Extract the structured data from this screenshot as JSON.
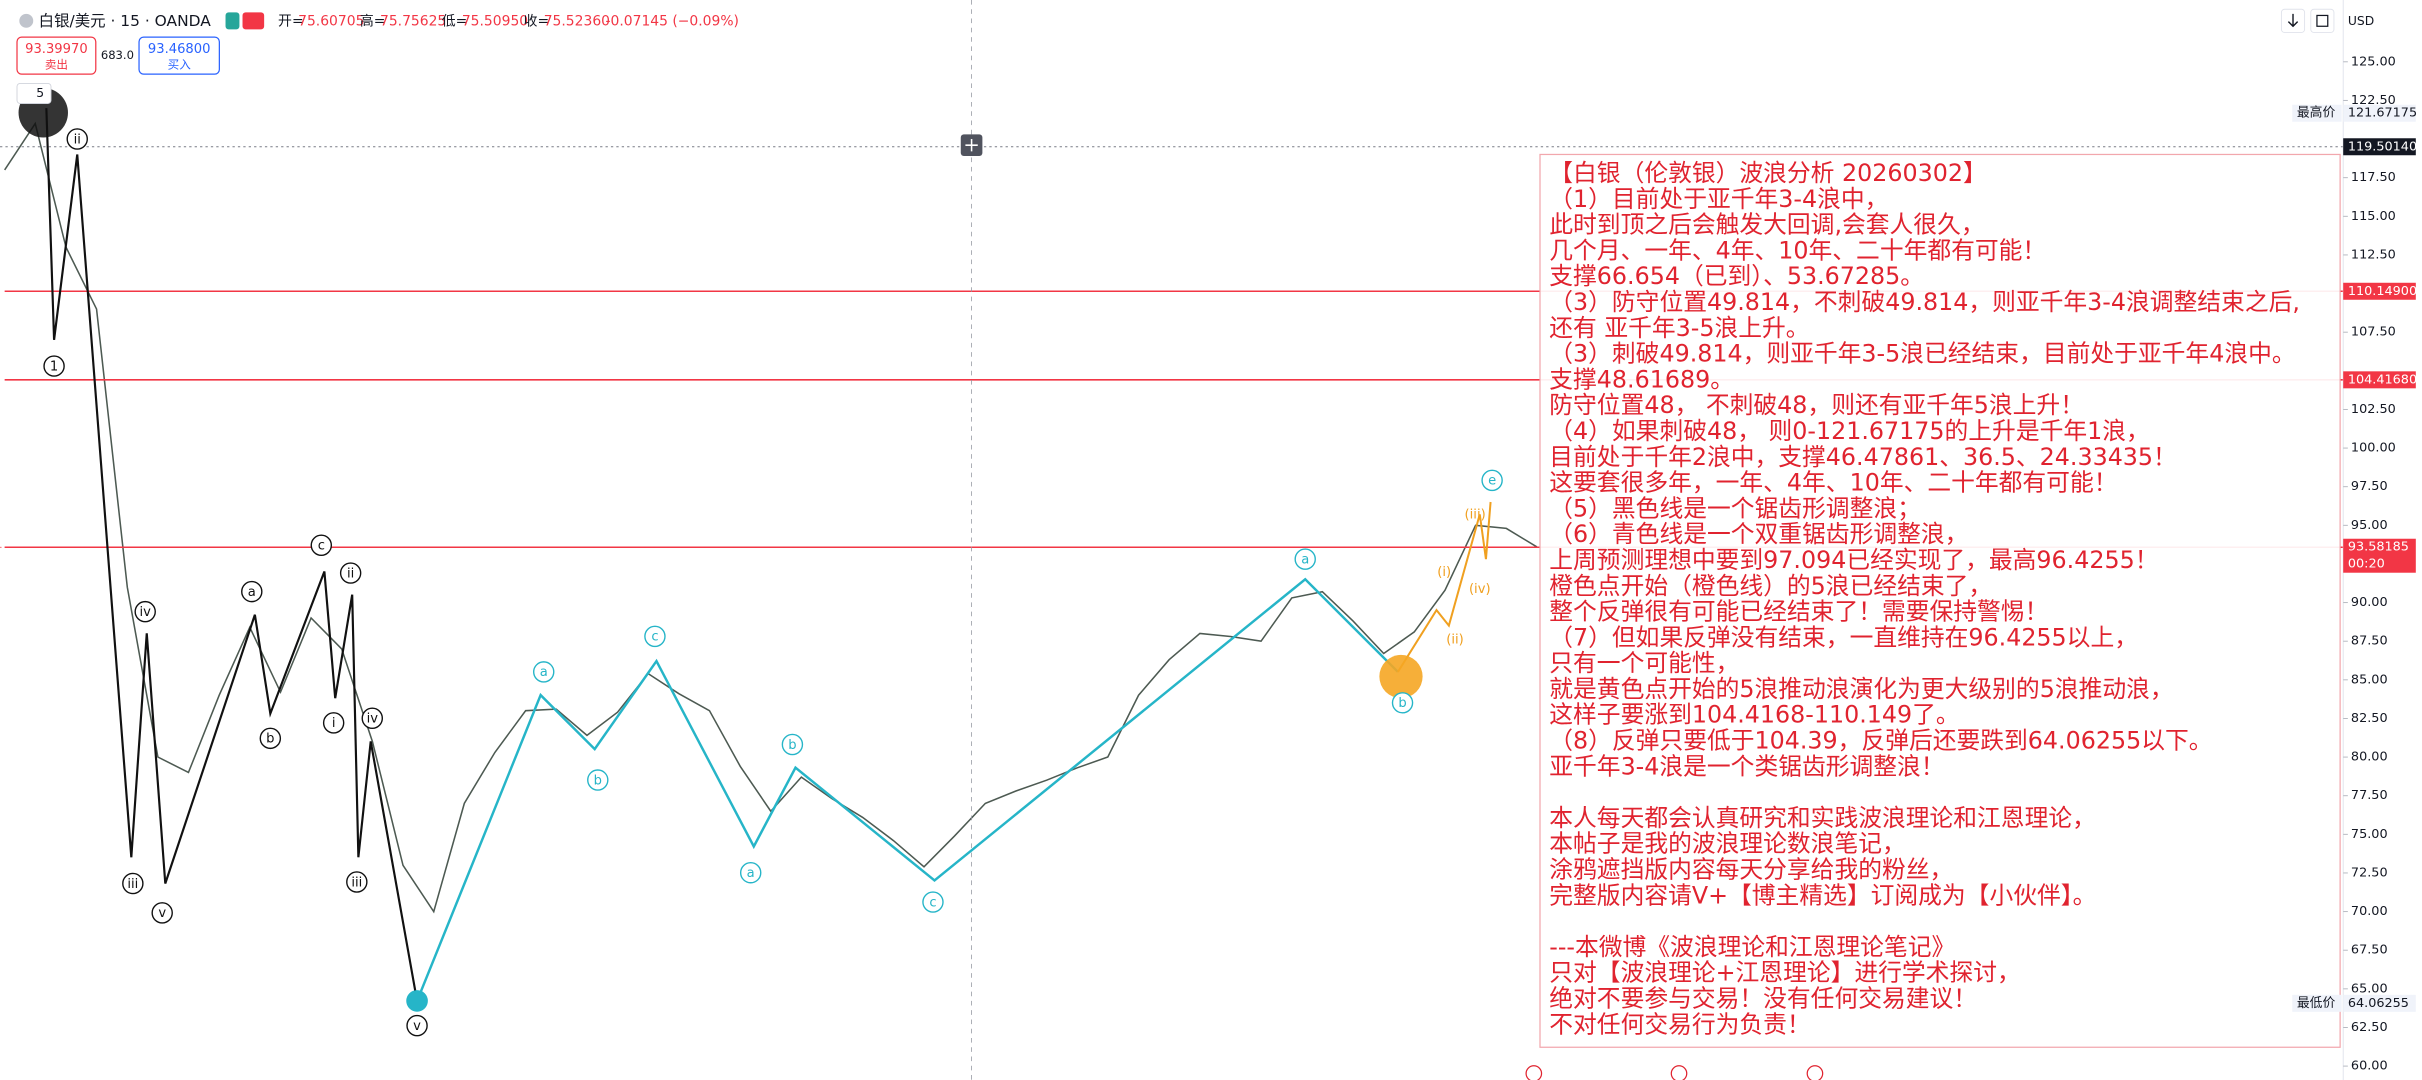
{
  "header": {
    "symbol": "白银/美元 · 15 · OANDA",
    "ohlc": [
      {
        "label": "开=",
        "value": "75.60705"
      },
      {
        "label": "高=",
        "value": "75.75625"
      },
      {
        "label": "低=",
        "value": "75.50950"
      },
      {
        "label": "收=",
        "value": "75.52360"
      }
    ],
    "change": "-0.07145 (−0.09%)"
  },
  "trade": {
    "sell_price": "93.39970",
    "sell_label": "卖出",
    "spread": "683.0",
    "buy_price": "93.46800",
    "buy_label": "买入"
  },
  "interval_badge": "5",
  "currency": "USD",
  "chart_data": {
    "type": "line",
    "categories": [
      null,
      null,
      null,
      null,
      null,
      null,
      null,
      null,
      null,
      null,
      null,
      null,
      null,
      null,
      null,
      null,
      null,
      null,
      null,
      null,
      null,
      null,
      null,
      null,
      null,
      null,
      null,
      null,
      null,
      null,
      null,
      null,
      null,
      null,
      null,
      null,
      null,
      null,
      null,
      null,
      null,
      null,
      null,
      null,
      null,
      null,
      null,
      null,
      null,
      null,
      null
    ],
    "values": [
      118,
      121,
      113,
      109,
      91,
      80,
      79,
      84,
      88.4,
      84.2,
      89,
      87,
      81,
      73,
      70,
      77,
      80.3,
      83,
      83.1,
      81.4,
      82.9,
      85.4,
      84.1,
      83,
      79.4,
      76.5,
      78.7,
      77.3,
      76.1,
      74.6,
      72.9,
      74.9,
      77,
      77.8,
      78.5,
      79.3,
      80,
      84,
      86.3,
      88,
      87.8,
      87.5,
      90.3,
      90.7,
      88.8,
      86.7,
      88.1,
      90.8,
      95,
      94.8,
      93.6
    ],
    "color": "#4d5a52",
    "ylim": [
      59.1,
      129
    ],
    "yticks": [
      {
        "value": 125,
        "label": "125.00"
      },
      {
        "value": 122.5,
        "label": "122.50"
      },
      {
        "value": 117.5,
        "label": "117.50"
      },
      {
        "value": 115,
        "label": "115.00"
      },
      {
        "value": 112.5,
        "label": "112.50"
      },
      {
        "value": 107.5,
        "label": "107.50"
      },
      {
        "value": 102.5,
        "label": "102.50"
      },
      {
        "value": 100,
        "label": "100.00"
      },
      {
        "value": 97.5,
        "label": "97.50"
      },
      {
        "value": 95,
        "label": "95.00"
      },
      {
        "value": 90,
        "label": "90.00"
      },
      {
        "value": 87.5,
        "label": "87.50"
      },
      {
        "value": 85,
        "label": "85.00"
      },
      {
        "value": 82.5,
        "label": "82.50"
      },
      {
        "value": 80,
        "label": "80.00"
      },
      {
        "value": 77.5,
        "label": "77.50"
      },
      {
        "value": 75,
        "label": "75.00"
      },
      {
        "value": 72.5,
        "label": "72.50"
      },
      {
        "value": 70,
        "label": "70.00"
      },
      {
        "value": 67.5,
        "label": "67.50"
      },
      {
        "value": 65,
        "label": "65.00"
      },
      {
        "value": 62.5,
        "label": "62.50"
      },
      {
        "value": 60,
        "label": "60.00"
      }
    ],
    "grid": false,
    "price_lines": [
      {
        "tag": "最高价",
        "value": 121.67175,
        "style": "gray"
      },
      {
        "value": 119.5014,
        "label": "119.50140",
        "style": "black"
      },
      {
        "value": 110.149,
        "label": "110.14900",
        "style": "red"
      },
      {
        "value": 104.4168,
        "label": "104.41680",
        "style": "red"
      },
      {
        "value": 93.58185,
        "countdown": "00:20",
        "style": "red"
      },
      {
        "tag": "最低价",
        "value": 64.06255,
        "style": "gray"
      }
    ]
  },
  "annotation": {
    "title": "【白银（伦敦银）波浪分析 20260302】",
    "blocks": [
      [
        "（1）目前处于亚千年3-4浪中，",
        "此时到顶之后会触发大回调,会套人很久，",
        "几个月、一年、4年、10年、二十年都有可能！",
        "支撑66.654（已到）、53.67285。",
        "（3）防守位置49.814，不刺破49.814，则亚千年3-4浪调整结束之后,",
        "还有 亚千年3-5浪上升。",
        "（3）刺破49.814，则亚千年3-5浪已经结束，目前处于亚千年4浪中。",
        "支撑48.61689。",
        "防守位置48， 不刺破48，则还有亚千年5浪上升！",
        "（4）如果刺破48， 则0-121.67175的上升是千年1浪，",
        "目前处于千年2浪中，支撑46.47861、36.5、24.33435！",
        "这要套很多年，一年、4年、10年、二十年都有可能！",
        "（5）黑色线是一个锯齿形调整浪；",
        "（6）青色线是一个双重锯齿形调整浪，",
        "上周预测理想中要到97.094已经实现了，最高96.4255！",
        "橙色点开始（橙色线）的5浪已经结束了，",
        "整个反弹很有可能已经结束了！需要保持警惕！",
        "（7）但如果反弹没有结束，一直维持在96.4255以上，",
        "只有一个可能性，",
        "就是黄色点开始的5浪推动浪演化为更大级别的5浪推动浪，",
        "这样子要涨到104.4168-110.149了。",
        "（8）反弹只要低于104.39，反弹后还要跌到64.06255以下。",
        "亚千年3-4浪是一个类锯齿形调整浪！"
      ],
      [
        "本人每天都会认真研究和实践波浪理论和江恩理论，",
        "本帖子是我的波浪理论数浪笔记，",
        "涂鸦遮挡版内容每天分享给我的粉丝，",
        "完整版内容请V+【博主精选】订阅成为【小伙伴】。"
      ],
      [
        "---本微博《波浪理论和江恩理论笔记》",
        "只对【波浪理论+江恩理论】进行学术探讨，",
        "绝对不要参与交易！没有任何交易建议！",
        "不对任何交易行为负责！"
      ]
    ]
  },
  "wave_labels": [
    {
      "text": "ii",
      "color": "#111"
    },
    {
      "text": "1",
      "color": "#111"
    },
    {
      "text": "iii",
      "color": "#111"
    },
    {
      "text": "iv",
      "color": "#111"
    },
    {
      "text": "v",
      "color": "#111"
    },
    {
      "text": "a",
      "color": "#111"
    },
    {
      "text": "b",
      "color": "#111"
    },
    {
      "text": "c",
      "color": "#111"
    },
    {
      "text": "ii",
      "color": "#111"
    },
    {
      "text": "i",
      "color": "#111"
    },
    {
      "text": "iv",
      "color": "#111"
    },
    {
      "text": "iii",
      "color": "#111"
    },
    {
      "text": "v",
      "color": "#111"
    },
    {
      "text": "a",
      "color": "#26b5c8"
    },
    {
      "text": "b",
      "color": "#26b5c8"
    },
    {
      "text": "c",
      "color": "#26b5c8"
    },
    {
      "text": "a",
      "color": "#26b5c8"
    },
    {
      "text": "b",
      "color": "#26b5c8"
    },
    {
      "text": "c",
      "color": "#26b5c8"
    },
    {
      "text": "a",
      "color": "#26b5c8"
    },
    {
      "text": "b",
      "color": "#26b5c8"
    },
    {
      "text": "(iii)",
      "color": "#f0a020"
    },
    {
      "text": "(i)",
      "color": "#f0a020"
    },
    {
      "text": "(iv)",
      "color": "#f0a020"
    },
    {
      "text": "(ii)",
      "color": "#f0a020"
    },
    {
      "text": "e",
      "color": "#26b5c8"
    }
  ]
}
